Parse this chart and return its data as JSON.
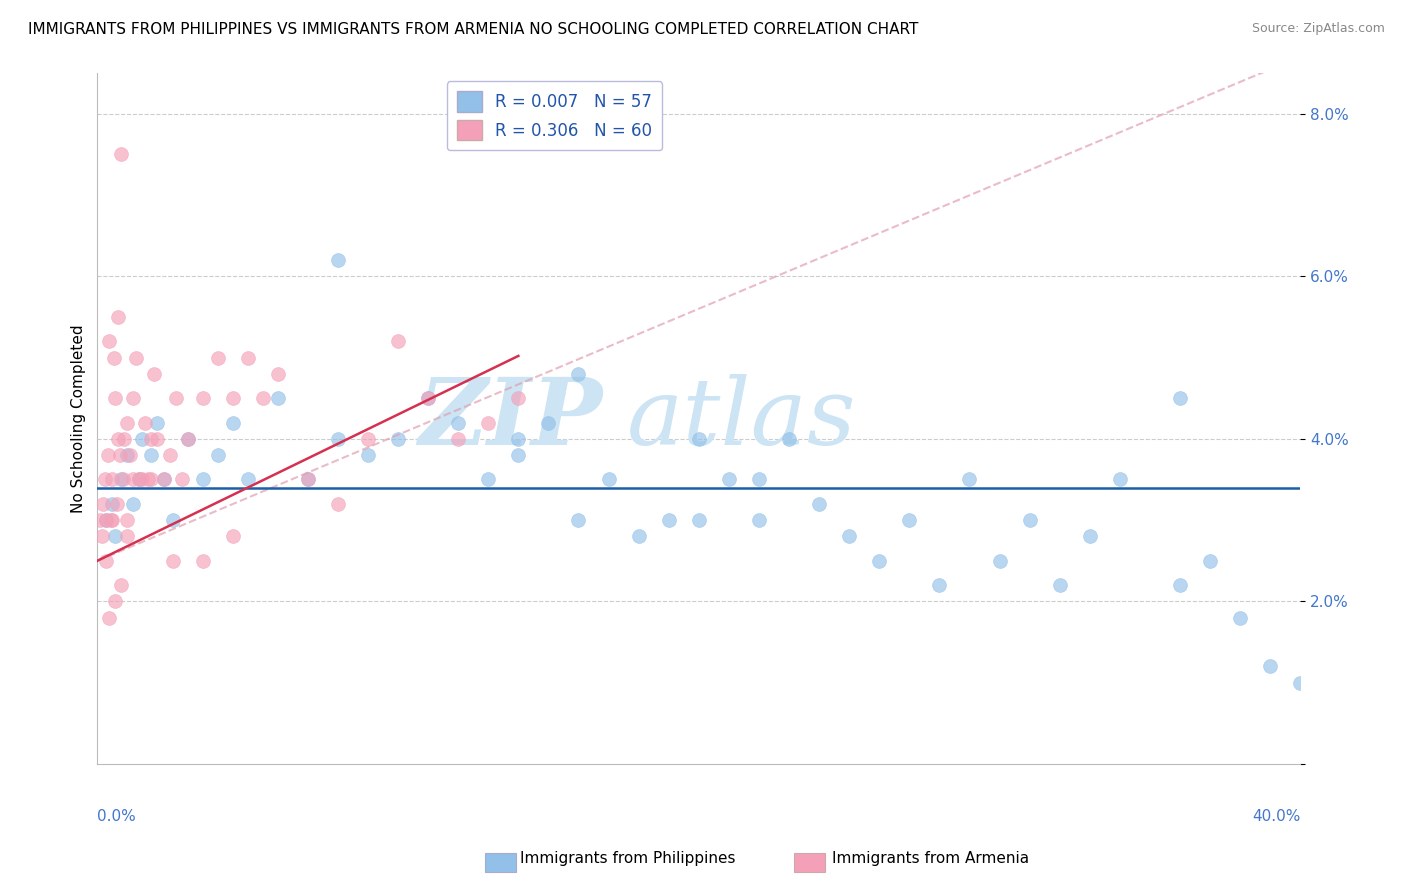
{
  "title": "IMMIGRANTS FROM PHILIPPINES VS IMMIGRANTS FROM ARMENIA NO SCHOOLING COMPLETED CORRELATION CHART",
  "source": "Source: ZipAtlas.com",
  "ylabel": "No Schooling Completed",
  "xlim": [
    0.0,
    40.0
  ],
  "ylim": [
    0.0,
    8.5
  ],
  "yticks": [
    0.0,
    2.0,
    4.0,
    6.0,
    8.0
  ],
  "ytick_labels": [
    "",
    "2.0%",
    "4.0%",
    "6.0%",
    "8.0%"
  ],
  "blue_color": "#92c0e8",
  "pink_color": "#f4a0b8",
  "blue_line_color": "#1a5fa8",
  "pink_line_color": "#d63050",
  "pink_dash_color": "#e0a0b0",
  "watermark_color": "#cce4f4",
  "title_fontsize": 11,
  "axis_label_fontsize": 11,
  "legend_blue_label": "R = 0.007   N = 57",
  "legend_pink_label": "R = 0.306   N = 60",
  "phil_x": [
    0.3,
    0.5,
    0.6,
    0.8,
    1.0,
    1.2,
    1.4,
    1.5,
    1.8,
    2.0,
    2.2,
    2.5,
    3.0,
    3.5,
    4.0,
    4.5,
    5.0,
    6.0,
    7.0,
    8.0,
    9.0,
    10.0,
    11.0,
    12.0,
    13.0,
    14.0,
    15.0,
    16.0,
    17.0,
    18.0,
    19.0,
    20.0,
    21.0,
    22.0,
    23.0,
    24.0,
    25.0,
    26.0,
    27.0,
    28.0,
    29.0,
    30.0,
    31.0,
    32.0,
    33.0,
    34.0,
    36.0,
    37.0,
    38.0,
    39.0,
    40.0,
    8.0,
    14.0,
    16.0,
    20.0,
    22.0,
    36.0
  ],
  "phil_y": [
    3.0,
    3.2,
    2.8,
    3.5,
    3.8,
    3.2,
    3.5,
    4.0,
    3.8,
    4.2,
    3.5,
    3.0,
    4.0,
    3.5,
    3.8,
    4.2,
    3.5,
    4.5,
    3.5,
    4.0,
    3.8,
    4.0,
    4.5,
    4.2,
    3.5,
    4.0,
    4.2,
    3.0,
    3.5,
    2.8,
    3.0,
    4.0,
    3.5,
    3.5,
    4.0,
    3.2,
    2.8,
    2.5,
    3.0,
    2.2,
    3.5,
    2.5,
    3.0,
    2.2,
    2.8,
    3.5,
    2.2,
    2.5,
    1.8,
    1.2,
    1.0,
    6.2,
    3.8,
    4.8,
    3.0,
    3.0,
    4.5
  ],
  "arm_x": [
    0.1,
    0.15,
    0.2,
    0.25,
    0.3,
    0.35,
    0.4,
    0.45,
    0.5,
    0.55,
    0.6,
    0.65,
    0.7,
    0.75,
    0.8,
    0.85,
    0.9,
    1.0,
    1.1,
    1.2,
    1.3,
    1.4,
    1.5,
    1.6,
    1.7,
    1.8,
    1.9,
    2.0,
    2.2,
    2.4,
    2.6,
    2.8,
    3.0,
    3.5,
    4.0,
    4.5,
    5.0,
    5.5,
    6.0,
    7.0,
    8.0,
    9.0,
    10.0,
    11.0,
    12.0,
    13.0,
    14.0,
    0.3,
    0.5,
    0.7,
    1.0,
    1.2,
    1.8,
    2.5,
    3.5,
    4.5,
    0.4,
    0.6,
    0.8,
    1.0
  ],
  "arm_y": [
    3.0,
    2.8,
    3.2,
    3.5,
    3.0,
    3.8,
    5.2,
    3.0,
    3.5,
    5.0,
    4.5,
    3.2,
    5.5,
    3.8,
    7.5,
    3.5,
    4.0,
    3.0,
    3.8,
    4.5,
    5.0,
    3.5,
    3.5,
    4.2,
    3.5,
    4.0,
    4.8,
    4.0,
    3.5,
    3.8,
    4.5,
    3.5,
    4.0,
    4.5,
    5.0,
    4.5,
    5.0,
    4.5,
    4.8,
    3.5,
    3.2,
    4.0,
    5.2,
    4.5,
    4.0,
    4.2,
    4.5,
    2.5,
    3.0,
    4.0,
    4.2,
    3.5,
    3.5,
    2.5,
    2.5,
    2.8,
    1.8,
    2.0,
    2.2,
    2.8
  ]
}
